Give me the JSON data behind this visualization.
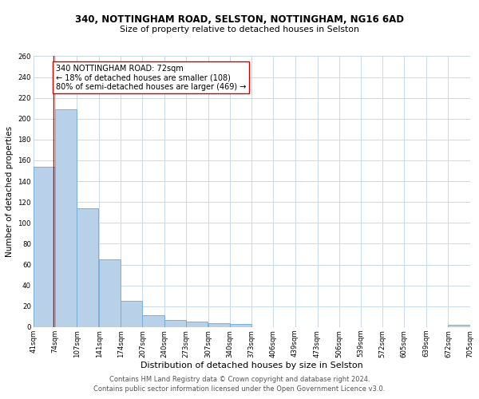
{
  "title1": "340, NOTTINGHAM ROAD, SELSTON, NOTTINGHAM, NG16 6AD",
  "title2": "Size of property relative to detached houses in Selston",
  "xlabel": "Distribution of detached houses by size in Selston",
  "ylabel": "Number of detached properties",
  "bar_left_edges": [
    41,
    74,
    107,
    141,
    174,
    207,
    240,
    273,
    307,
    340,
    373,
    406,
    439,
    473,
    506,
    539,
    572,
    605,
    639,
    672
  ],
  "bar_heights": [
    154,
    209,
    114,
    65,
    25,
    11,
    7,
    5,
    4,
    3,
    0,
    0,
    0,
    0,
    0,
    0,
    0,
    0,
    0,
    2
  ],
  "tick_positions": [
    41,
    74,
    107,
    141,
    174,
    207,
    240,
    273,
    307,
    340,
    373,
    406,
    439,
    473,
    506,
    539,
    572,
    605,
    639,
    672,
    705
  ],
  "tick_labels": [
    "41sqm",
    "74sqm",
    "107sqm",
    "141sqm",
    "174sqm",
    "207sqm",
    "240sqm",
    "273sqm",
    "307sqm",
    "340sqm",
    "373sqm",
    "406sqm",
    "439sqm",
    "473sqm",
    "506sqm",
    "539sqm",
    "572sqm",
    "605sqm",
    "639sqm",
    "672sqm",
    "705sqm"
  ],
  "bar_color": "#b8d0e8",
  "bar_edge_color": "#6aaad4",
  "property_line_x": 72,
  "property_line_color": "#cc0000",
  "annotation_text": "340 NOTTINGHAM ROAD: 72sqm\n← 18% of detached houses are smaller (108)\n80% of semi-detached houses are larger (469) →",
  "annotation_box_color": "#cc0000",
  "footer1": "Contains HM Land Registry data © Crown copyright and database right 2024.",
  "footer2": "Contains public sector information licensed under the Open Government Licence v3.0.",
  "ylim": [
    0,
    260
  ],
  "yticks": [
    0,
    20,
    40,
    60,
    80,
    100,
    120,
    140,
    160,
    180,
    200,
    220,
    240,
    260
  ],
  "xlim_min": 41,
  "xlim_max": 705,
  "bg_color": "#ffffff",
  "grid_color": "#c8d8ea",
  "title1_fontsize": 8.5,
  "title2_fontsize": 7.8,
  "xlabel_fontsize": 8.0,
  "ylabel_fontsize": 7.5,
  "tick_fontsize": 6.2,
  "annotation_fontsize": 7.0,
  "footer_fontsize": 6.0
}
